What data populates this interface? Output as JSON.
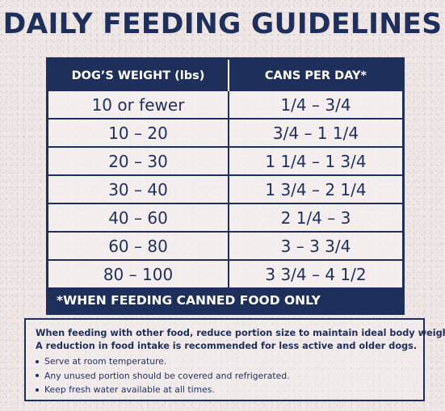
{
  "title": "DAILY FEEDING GUIDELINES",
  "table": {
    "headers": [
      "DOG’S WEIGHT (lbs)",
      "CANS PER DAY*"
    ],
    "rows": [
      {
        "weight": "10 or fewer",
        "cans": "1/4 – 3/4"
      },
      {
        "weight": "10 – 20",
        "cans": "3/4 – 1 1/4"
      },
      {
        "weight": "20 – 30",
        "cans": "1 1/4 – 1 3/4"
      },
      {
        "weight": "30 – 40",
        "cans": "1 3/4 – 2 1/4"
      },
      {
        "weight": "40 – 60",
        "cans": "2 1/4 – 3"
      },
      {
        "weight": "60 – 80",
        "cans": "3 – 3 3/4"
      },
      {
        "weight": "80 – 100",
        "cans": "3 3/4 – 4 1/2"
      }
    ],
    "footnote": "*WHEN FEEDING CANNED FOOD ONLY"
  },
  "note": {
    "line1": "When feeding with other food, reduce portion size to maintain ideal body weight.",
    "line2": "A reduction in food intake is recommended for less active and older dogs.",
    "bullets": [
      "Serve at room temperature.",
      "Any unused portion should be covered and refrigerated.",
      "Keep fresh water available at all times."
    ]
  },
  "colors": {
    "navy": "#1f2f5c",
    "background": "#efe6e6",
    "header_text": "#ffffff"
  }
}
